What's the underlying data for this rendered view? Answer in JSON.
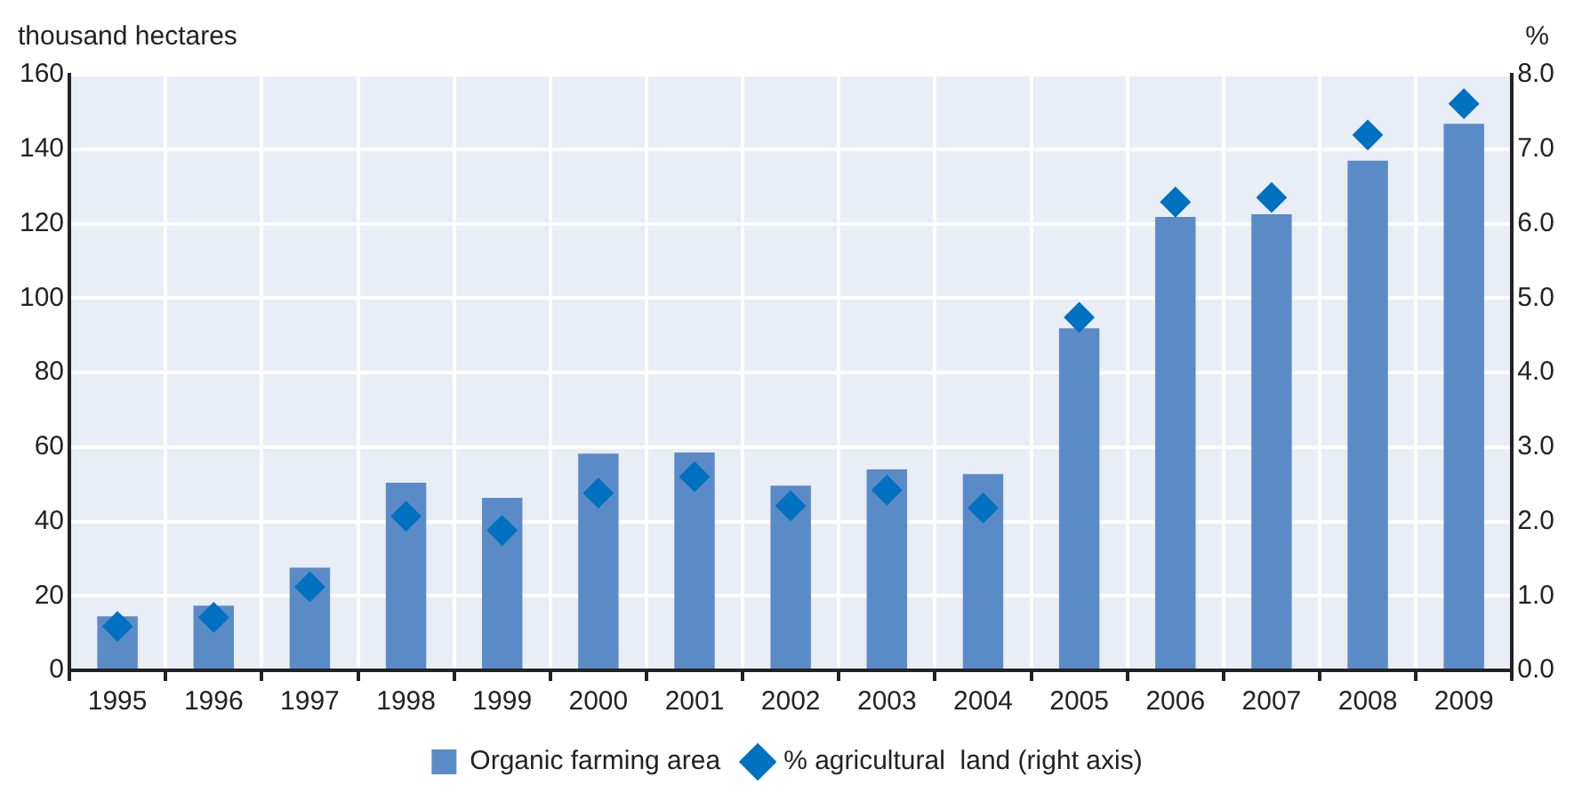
{
  "chart_data": {
    "type": "bar",
    "ylabel": "thousand  hectares",
    "y2label": "%",
    "categories": [
      "1995",
      "1996",
      "1997",
      "1998",
      "1999",
      "2000",
      "2001",
      "2002",
      "2003",
      "2004",
      "2005",
      "2006",
      "2007",
      "2008",
      "2009"
    ],
    "series": [
      {
        "name": "Organic farming area",
        "color": "#5b8bc7",
        "values": [
          14.5,
          17.4,
          27.6,
          50.4,
          46.3,
          58.2,
          58.5,
          49.6,
          54.0,
          52.7,
          91.9,
          121.8,
          122.5,
          136.9,
          146.8
        ]
      },
      {
        "name": "% agricultural  land (right axis)",
        "type": "scatter",
        "axis": "y2",
        "marker": "diamond",
        "color": "#0070c0",
        "values": [
          0.59,
          0.71,
          1.12,
          2.07,
          1.88,
          2.38,
          2.6,
          2.21,
          2.42,
          2.18,
          4.74,
          6.29,
          6.35,
          7.19,
          7.61
        ]
      }
    ],
    "ylim": [
      0,
      160
    ],
    "yticks": [
      0,
      20,
      40,
      60,
      80,
      100,
      120,
      140,
      160
    ],
    "y2lim": [
      0,
      8
    ],
    "y2ticks": [
      {
        "value": 0,
        "label": "0.0"
      },
      {
        "value": 1,
        "label": "1.0"
      },
      {
        "value": 2,
        "label": "2.0"
      },
      {
        "value": 3,
        "label": "3.0"
      },
      {
        "value": 4,
        "label": "4.0"
      },
      {
        "value": 5,
        "label": "5.0"
      },
      {
        "value": 6,
        "label": "6.0"
      },
      {
        "value": 7,
        "label": "7.0"
      },
      {
        "value": 8,
        "label": "8.0"
      }
    ],
    "grid": true,
    "legend": "bottom"
  }
}
